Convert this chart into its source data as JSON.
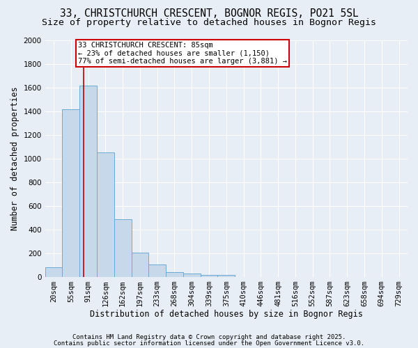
{
  "title1": "33, CHRISTCHURCH CRESCENT, BOGNOR REGIS, PO21 5SL",
  "title2": "Size of property relative to detached houses in Bognor Regis",
  "xlabel": "Distribution of detached houses by size in Bognor Regis",
  "ylabel": "Number of detached properties",
  "categories": [
    "20sqm",
    "55sqm",
    "91sqm",
    "126sqm",
    "162sqm",
    "197sqm",
    "233sqm",
    "268sqm",
    "304sqm",
    "339sqm",
    "375sqm",
    "410sqm",
    "446sqm",
    "481sqm",
    "516sqm",
    "552sqm",
    "587sqm",
    "623sqm",
    "658sqm",
    "694sqm",
    "729sqm"
  ],
  "values": [
    80,
    1420,
    1620,
    1050,
    490,
    205,
    105,
    40,
    30,
    20,
    20,
    0,
    0,
    0,
    0,
    0,
    0,
    0,
    0,
    0,
    0
  ],
  "bar_color": "#c8d8eb",
  "bar_edge_color": "#6aaad4",
  "background_color": "#e8eef5",
  "grid_color": "#ffffff",
  "red_line_x": 1.72,
  "annotation_text": "33 CHRISTCHURCH CRESCENT: 85sqm\n← 23% of detached houses are smaller (1,150)\n77% of semi-detached houses are larger (3,881) →",
  "annotation_box_color": "#ffffff",
  "annotation_edge_color": "#cc0000",
  "ylim": [
    0,
    2000
  ],
  "yticks": [
    0,
    200,
    400,
    600,
    800,
    1000,
    1200,
    1400,
    1600,
    1800,
    2000
  ],
  "footnote1": "Contains HM Land Registry data © Crown copyright and database right 2025.",
  "footnote2": "Contains public sector information licensed under the Open Government Licence v3.0.",
  "title_fontsize": 10.5,
  "subtitle_fontsize": 9.5,
  "axis_label_fontsize": 8.5,
  "tick_fontsize": 7.5,
  "annotation_fontsize": 7.5,
  "footnote_fontsize": 6.5
}
